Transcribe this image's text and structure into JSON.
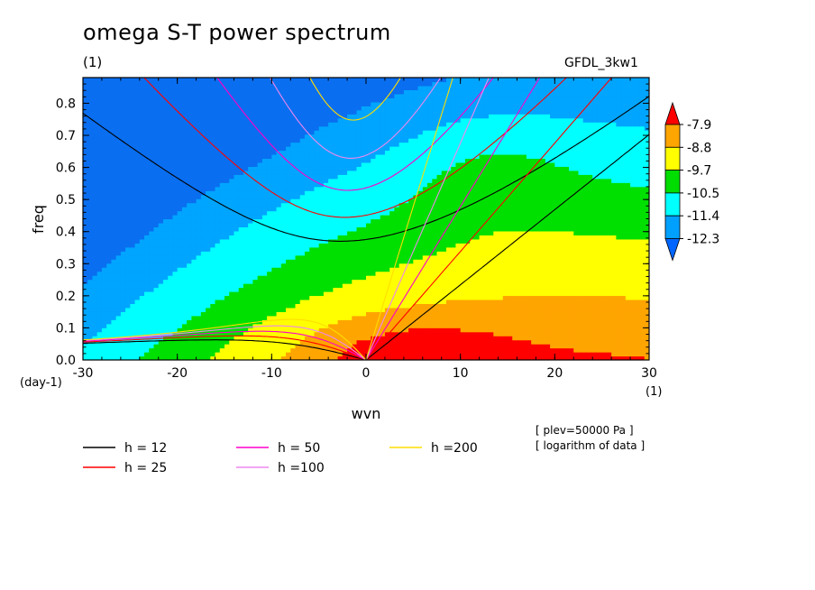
{
  "title": "omega S-T power spectrum",
  "subtitle_left": "(1)",
  "subtitle_right": "GFDL_3kw1",
  "notes": [
    "[ plev=50000 Pa ]",
    "[ logarithm of data ]"
  ],
  "chart_data": {
    "type": "heatmap",
    "xlabel": "wvn",
    "ylabel": "freq",
    "x_unit": "(1)",
    "y_unit": "(day-1)",
    "xlim": [
      -30,
      30
    ],
    "ylim": [
      0,
      0.88
    ],
    "xticks": [
      -30,
      -20,
      -10,
      0,
      10,
      20,
      30
    ],
    "yticks": [
      0.0,
      0.1,
      0.2,
      0.3,
      0.4,
      0.5,
      0.6,
      0.7,
      0.8
    ],
    "colorbar": {
      "labels": [
        "-7.9",
        "-8.8",
        "-9.7",
        "-10.5",
        "-11.4",
        "-12.3"
      ],
      "colors": [
        "#ff0000",
        "#ffa500",
        "#ffff00",
        "#00dd00",
        "#00ffff",
        "#00a0ff",
        "#0066ff",
        "#ff0000"
      ]
    },
    "contour_levels": [
      -12.3,
      -11.4,
      -10.5,
      -9.7,
      -8.8,
      -7.9
    ],
    "fill_colors": [
      "#0a6ef0",
      "#00a5ff",
      "#00ffff",
      "#00e000",
      "#ffff00",
      "#ffa500",
      "#ff0000"
    ],
    "dispersion_curves": [
      {
        "label": "h = 12",
        "h": 12,
        "color": "#000000"
      },
      {
        "label": "h = 25",
        "h": 25,
        "color": "#ff0000"
      },
      {
        "label": "h = 50",
        "h": 50,
        "color": "#ff00cc"
      },
      {
        "label": "h =100",
        "h": 100,
        "color": "#ee88ee"
      },
      {
        "label": "h =200",
        "h": 200,
        "color": "#ffdd00"
      }
    ]
  }
}
